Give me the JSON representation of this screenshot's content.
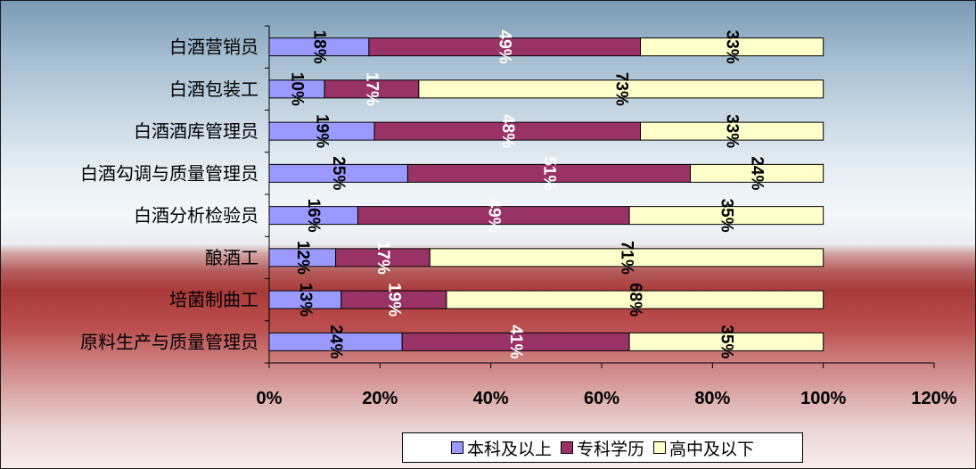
{
  "chart_data": {
    "type": "bar",
    "orientation": "horizontal",
    "stacked": true,
    "categories": [
      "白酒营销员",
      "白酒包装工",
      "白酒酒库管理员",
      "白酒勾调与质量管理员",
      "白酒分析检验员",
      "酿酒工",
      "培菌制曲工",
      "原料生产与质量管理员"
    ],
    "series": [
      {
        "name": "本科及以上",
        "color": "#9999ff",
        "values": [
          0.18,
          0.1,
          0.19,
          0.25,
          0.16,
          0.12,
          0.13,
          0.24
        ],
        "labels": [
          "18%",
          "10%",
          "19%",
          "25%",
          "16%",
          "12%",
          "13%",
          "24%"
        ]
      },
      {
        "name": "专科学历",
        "color": "#993366",
        "values": [
          0.49,
          0.17,
          0.48,
          0.51,
          0.49,
          0.17,
          0.19,
          0.41
        ],
        "labels": [
          "49%",
          "17%",
          "48%",
          "51%",
          "49%",
          "17%",
          "19%",
          "41%"
        ]
      },
      {
        "name": "高中及以下",
        "color": "#ffffcc",
        "values": [
          0.33,
          0.73,
          0.33,
          0.24,
          0.35,
          0.71,
          0.68,
          0.35
        ],
        "labels": [
          "33%",
          "73%",
          "33%",
          "24%",
          "35%",
          "71%",
          "68%",
          "35%"
        ]
      }
    ],
    "label_colors": [
      "#000000",
      "#ffffff",
      "#000000"
    ],
    "xlim": [
      0,
      1.2
    ],
    "xticks": [
      "0%",
      "20%",
      "40%",
      "60%",
      "80%",
      "100%",
      "120%"
    ],
    "legend_position": "bottom"
  }
}
